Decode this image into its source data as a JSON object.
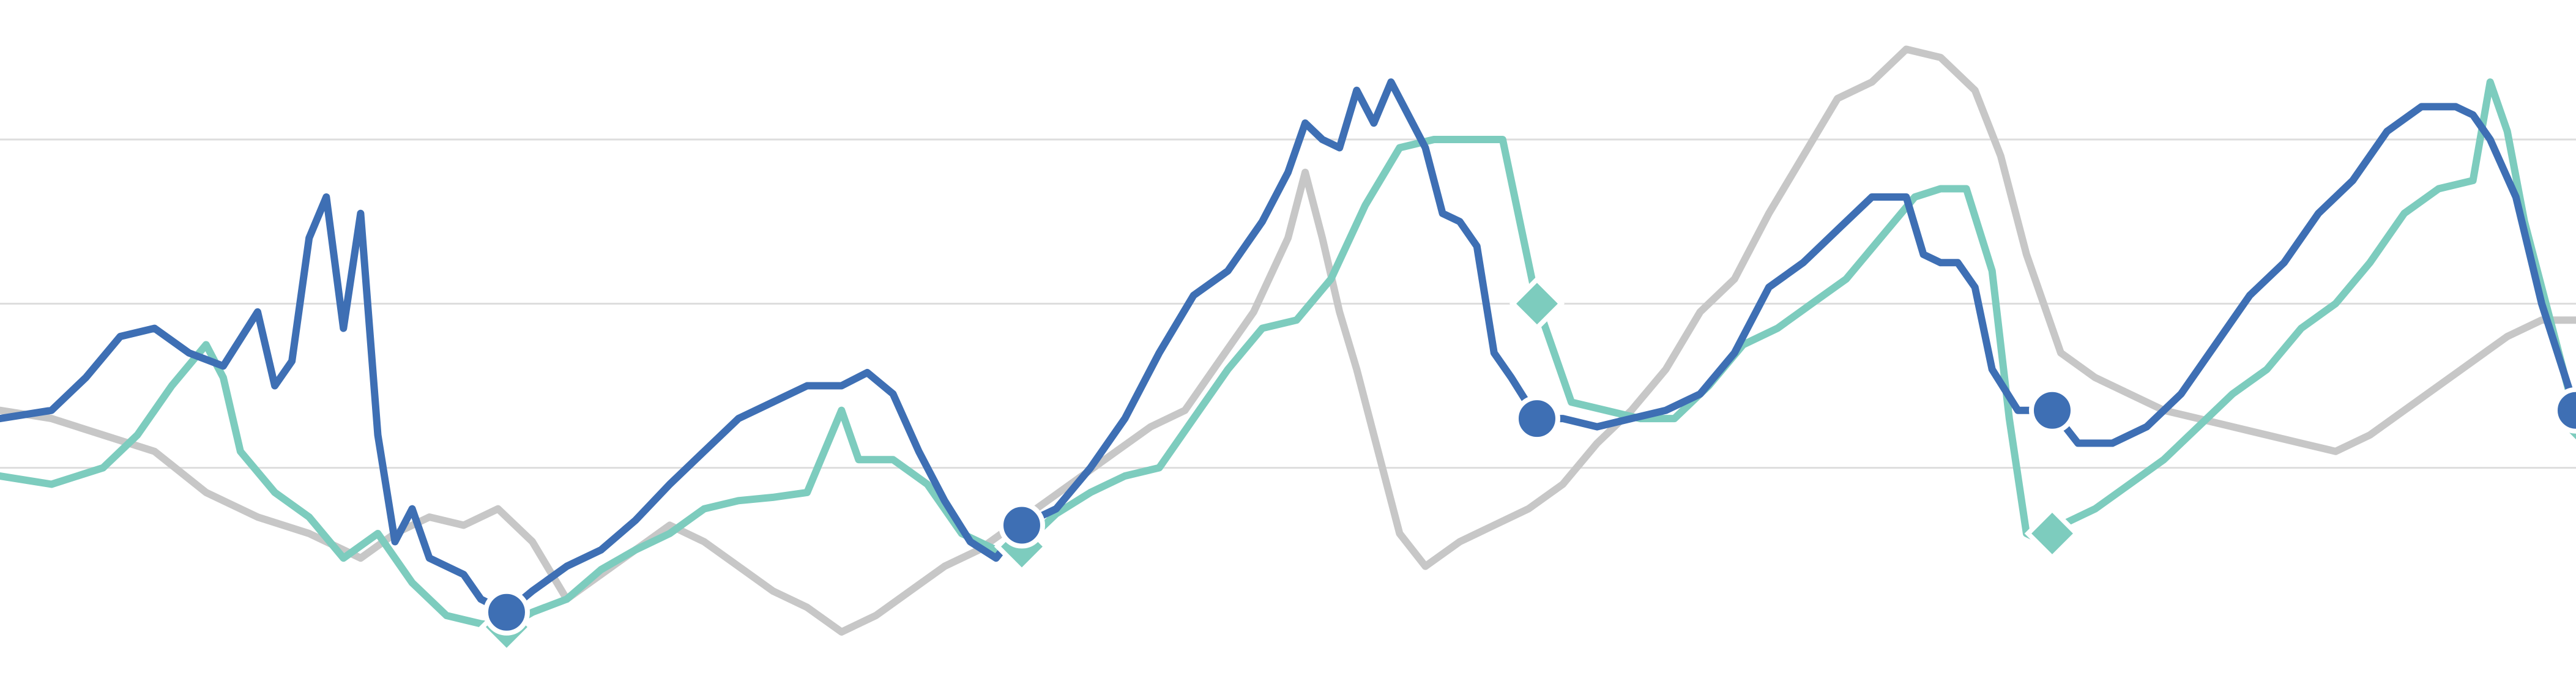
{
  "chart_data": {
    "type": "line",
    "title": "",
    "xlabel": "",
    "ylabel": "",
    "xlim": [
      0,
      300
    ],
    "ylim": [
      -0.25,
      3.85
    ],
    "grid": {
      "horizontal": true,
      "vertical": false,
      "y_values": [
        1,
        2,
        3
      ]
    },
    "legend": "none",
    "colors": {
      "grid": "#dddddd",
      "background": "#ffffff"
    },
    "series": [
      {
        "color": "#c7c7c7",
        "marker": "none",
        "points": [
          [
            0,
            1.35
          ],
          [
            6,
            1.3
          ],
          [
            12,
            1.2
          ],
          [
            18,
            1.1
          ],
          [
            24,
            0.85
          ],
          [
            30,
            0.7
          ],
          [
            36,
            0.6
          ],
          [
            42,
            0.45
          ],
          [
            46,
            0.6
          ],
          [
            50,
            0.7
          ],
          [
            54,
            0.65
          ],
          [
            58,
            0.75
          ],
          [
            62,
            0.55
          ],
          [
            66,
            0.2
          ],
          [
            70,
            0.35
          ],
          [
            74,
            0.5
          ],
          [
            78,
            0.65
          ],
          [
            82,
            0.55
          ],
          [
            86,
            0.4
          ],
          [
            90,
            0.25
          ],
          [
            94,
            0.15
          ],
          [
            98,
            0.0
          ],
          [
            102,
            0.1
          ],
          [
            106,
            0.25
          ],
          [
            110,
            0.4
          ],
          [
            114,
            0.5
          ],
          [
            118,
            0.65
          ],
          [
            122,
            0.8
          ],
          [
            126,
            0.95
          ],
          [
            130,
            1.1
          ],
          [
            134,
            1.25
          ],
          [
            138,
            1.35
          ],
          [
            142,
            1.65
          ],
          [
            146,
            1.95
          ],
          [
            150,
            2.4
          ],
          [
            152,
            2.8
          ],
          [
            154,
            2.4
          ],
          [
            156,
            1.95
          ],
          [
            158,
            1.6
          ],
          [
            160,
            1.2
          ],
          [
            163,
            0.6
          ],
          [
            166,
            0.4
          ],
          [
            170,
            0.55
          ],
          [
            174,
            0.65
          ],
          [
            178,
            0.75
          ],
          [
            182,
            0.9
          ],
          [
            186,
            1.15
          ],
          [
            190,
            1.35
          ],
          [
            194,
            1.6
          ],
          [
            198,
            1.95
          ],
          [
            202,
            2.15
          ],
          [
            206,
            2.55
          ],
          [
            210,
            2.9
          ],
          [
            214,
            3.25
          ],
          [
            218,
            3.35
          ],
          [
            222,
            3.55
          ],
          [
            226,
            3.5
          ],
          [
            230,
            3.3
          ],
          [
            233,
            2.9
          ],
          [
            236,
            2.3
          ],
          [
            240,
            1.7
          ],
          [
            244,
            1.55
          ],
          [
            248,
            1.45
          ],
          [
            252,
            1.35
          ],
          [
            256,
            1.3
          ],
          [
            260,
            1.25
          ],
          [
            264,
            1.2
          ],
          [
            268,
            1.15
          ],
          [
            272,
            1.1
          ],
          [
            276,
            1.2
          ],
          [
            280,
            1.35
          ],
          [
            284,
            1.5
          ],
          [
            288,
            1.65
          ],
          [
            292,
            1.8
          ],
          [
            296,
            1.9
          ],
          [
            300,
            1.9
          ]
        ]
      },
      {
        "color": "#7dccbe",
        "marker": "diamond",
        "points": [
          [
            0,
            0.95
          ],
          [
            6,
            0.9
          ],
          [
            12,
            1.0
          ],
          [
            16,
            1.2
          ],
          [
            20,
            1.5
          ],
          [
            24,
            1.75
          ],
          [
            26,
            1.55
          ],
          [
            28,
            1.1
          ],
          [
            32,
            0.85
          ],
          [
            36,
            0.7
          ],
          [
            40,
            0.45
          ],
          [
            44,
            0.6
          ],
          [
            48,
            0.3
          ],
          [
            52,
            0.1
          ],
          [
            56,
            0.05
          ],
          [
            59,
            0.03
          ],
          [
            62,
            0.12
          ],
          [
            66,
            0.2
          ],
          [
            70,
            0.38
          ],
          [
            74,
            0.5
          ],
          [
            78,
            0.6
          ],
          [
            82,
            0.75
          ],
          [
            86,
            0.8
          ],
          [
            90,
            0.82
          ],
          [
            94,
            0.85
          ],
          [
            98,
            1.35
          ],
          [
            100,
            1.05
          ],
          [
            104,
            1.05
          ],
          [
            108,
            0.9
          ],
          [
            112,
            0.6
          ],
          [
            116,
            0.5
          ],
          [
            119,
            0.52
          ],
          [
            123,
            0.72
          ],
          [
            127,
            0.85
          ],
          [
            131,
            0.95
          ],
          [
            135,
            1.0
          ],
          [
            139,
            1.3
          ],
          [
            143,
            1.6
          ],
          [
            147,
            1.85
          ],
          [
            151,
            1.9
          ],
          [
            155,
            2.15
          ],
          [
            159,
            2.6
          ],
          [
            163,
            2.95
          ],
          [
            167,
            3.0
          ],
          [
            171,
            3.0
          ],
          [
            175,
            3.0
          ],
          [
            179,
            2.0
          ],
          [
            183,
            1.4
          ],
          [
            187,
            1.35
          ],
          [
            191,
            1.3
          ],
          [
            195,
            1.3
          ],
          [
            199,
            1.5
          ],
          [
            203,
            1.75
          ],
          [
            207,
            1.85
          ],
          [
            211,
            2.0
          ],
          [
            215,
            2.15
          ],
          [
            219,
            2.4
          ],
          [
            223,
            2.65
          ],
          [
            226,
            2.7
          ],
          [
            229,
            2.7
          ],
          [
            232,
            2.2
          ],
          [
            234,
            1.3
          ],
          [
            236,
            0.6
          ],
          [
            238,
            0.55
          ],
          [
            240,
            0.65
          ],
          [
            244,
            0.75
          ],
          [
            248,
            0.9
          ],
          [
            252,
            1.05
          ],
          [
            256,
            1.25
          ],
          [
            260,
            1.45
          ],
          [
            264,
            1.6
          ],
          [
            268,
            1.85
          ],
          [
            272,
            2.0
          ],
          [
            276,
            2.25
          ],
          [
            280,
            2.55
          ],
          [
            284,
            2.7
          ],
          [
            288,
            2.75
          ],
          [
            290,
            3.35
          ],
          [
            292,
            3.05
          ],
          [
            294,
            2.5
          ],
          [
            297,
            1.9
          ],
          [
            300,
            1.3
          ]
        ],
        "marked": [
          [
            59,
            0.03
          ],
          [
            119,
            0.52
          ],
          [
            179,
            2.0
          ],
          [
            239,
            0.6
          ],
          [
            300,
            1.3
          ]
        ]
      },
      {
        "color": "#3e6fb4",
        "marker": "circle",
        "points": [
          [
            0,
            1.3
          ],
          [
            6,
            1.35
          ],
          [
            10,
            1.55
          ],
          [
            14,
            1.8
          ],
          [
            18,
            1.85
          ],
          [
            22,
            1.7
          ],
          [
            26,
            1.62
          ],
          [
            30,
            1.95
          ],
          [
            32,
            1.5
          ],
          [
            34,
            1.65
          ],
          [
            36,
            2.4
          ],
          [
            38,
            2.65
          ],
          [
            40,
            1.85
          ],
          [
            42,
            2.55
          ],
          [
            44,
            1.2
          ],
          [
            46,
            0.55
          ],
          [
            48,
            0.75
          ],
          [
            50,
            0.45
          ],
          [
            54,
            0.35
          ],
          [
            56,
            0.2
          ],
          [
            59,
            0.12
          ],
          [
            62,
            0.25
          ],
          [
            66,
            0.4
          ],
          [
            70,
            0.5
          ],
          [
            74,
            0.68
          ],
          [
            78,
            0.9
          ],
          [
            82,
            1.1
          ],
          [
            86,
            1.3
          ],
          [
            90,
            1.4
          ],
          [
            94,
            1.5
          ],
          [
            98,
            1.5
          ],
          [
            101,
            1.58
          ],
          [
            104,
            1.45
          ],
          [
            107,
            1.1
          ],
          [
            110,
            0.8
          ],
          [
            113,
            0.55
          ],
          [
            116,
            0.45
          ],
          [
            119,
            0.65
          ],
          [
            123,
            0.75
          ],
          [
            127,
            1.0
          ],
          [
            131,
            1.3
          ],
          [
            135,
            1.7
          ],
          [
            139,
            2.05
          ],
          [
            143,
            2.2
          ],
          [
            147,
            2.5
          ],
          [
            150,
            2.8
          ],
          [
            152,
            3.1
          ],
          [
            154,
            3.0
          ],
          [
            156,
            2.95
          ],
          [
            158,
            3.3
          ],
          [
            160,
            3.1
          ],
          [
            162,
            3.35
          ],
          [
            164,
            3.15
          ],
          [
            166,
            2.95
          ],
          [
            168,
            2.55
          ],
          [
            170,
            2.5
          ],
          [
            172,
            2.35
          ],
          [
            174,
            1.7
          ],
          [
            176,
            1.55
          ],
          [
            179,
            1.3
          ],
          [
            182,
            1.3
          ],
          [
            186,
            1.25
          ],
          [
            190,
            1.3
          ],
          [
            194,
            1.35
          ],
          [
            198,
            1.45
          ],
          [
            202,
            1.7
          ],
          [
            206,
            2.1
          ],
          [
            210,
            2.25
          ],
          [
            214,
            2.45
          ],
          [
            218,
            2.65
          ],
          [
            222,
            2.65
          ],
          [
            224,
            2.3
          ],
          [
            226,
            2.25
          ],
          [
            228,
            2.25
          ],
          [
            230,
            2.1
          ],
          [
            232,
            1.6
          ],
          [
            235,
            1.35
          ],
          [
            239,
            1.35
          ],
          [
            242,
            1.15
          ],
          [
            246,
            1.15
          ],
          [
            250,
            1.25
          ],
          [
            254,
            1.45
          ],
          [
            258,
            1.75
          ],
          [
            262,
            2.05
          ],
          [
            266,
            2.25
          ],
          [
            270,
            2.55
          ],
          [
            274,
            2.75
          ],
          [
            278,
            3.05
          ],
          [
            282,
            3.2
          ],
          [
            286,
            3.2
          ],
          [
            288,
            3.15
          ],
          [
            290,
            3.0
          ],
          [
            293,
            2.65
          ],
          [
            296,
            2.0
          ],
          [
            300,
            1.35
          ]
        ],
        "marked": [
          [
            59,
            0.12
          ],
          [
            119,
            0.65
          ],
          [
            179,
            1.3
          ],
          [
            239,
            1.35
          ],
          [
            300,
            1.35
          ]
        ]
      }
    ]
  }
}
